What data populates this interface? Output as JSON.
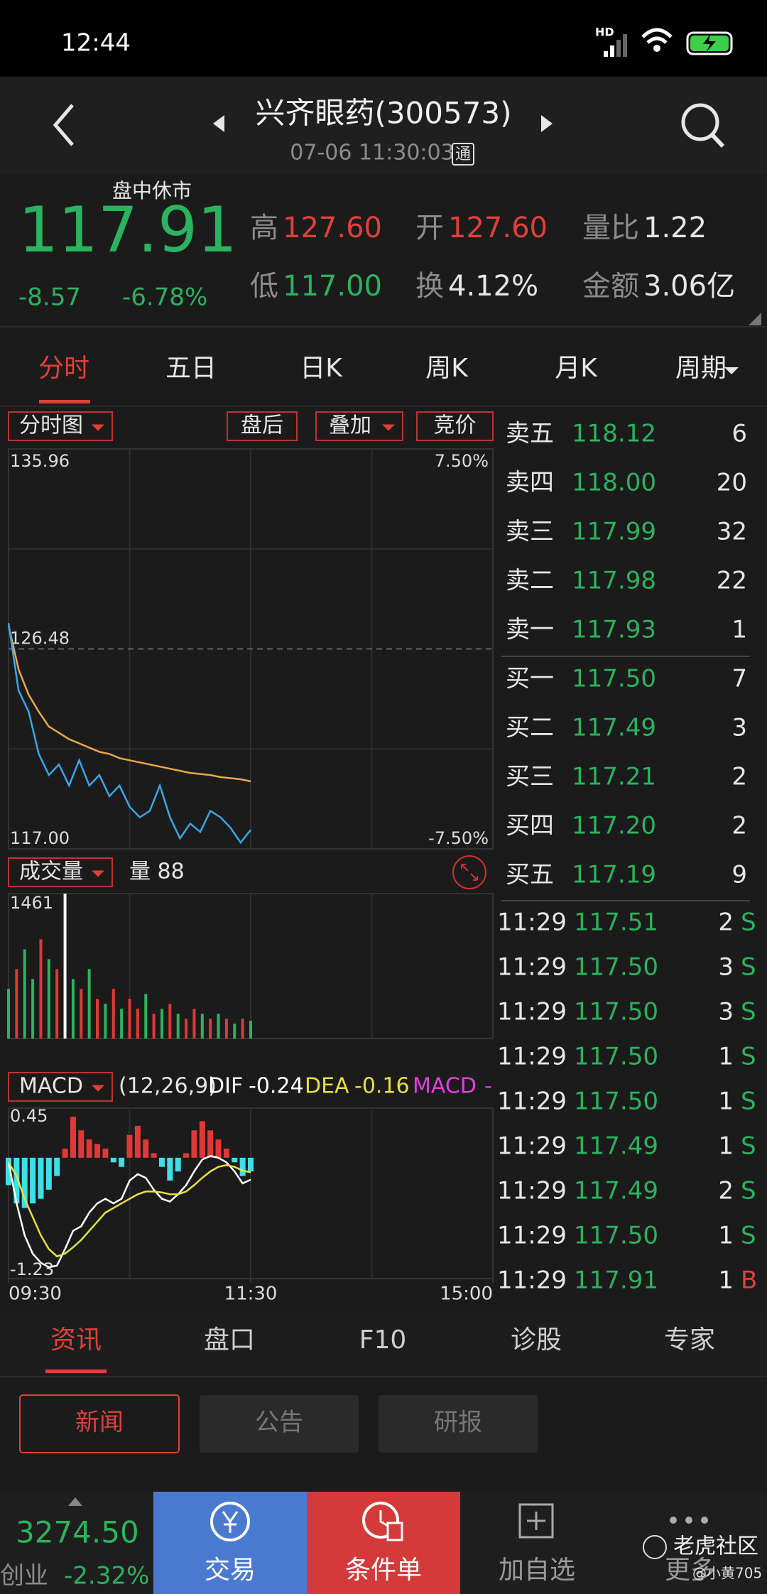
{
  "status_bar": {
    "time": "12:44",
    "network": "HD"
  },
  "header": {
    "title": "兴齐眼药(300573)",
    "datetime": "07-06 11:30:03",
    "badge": "通"
  },
  "quote": {
    "status": "盘中休市",
    "price": "117.91",
    "change": "-8.57",
    "change_pct": "-6.78%",
    "stats": [
      {
        "label": "高",
        "value": "127.60",
        "color": "#e0403a"
      },
      {
        "label": "开",
        "value": "127.60",
        "color": "#e0403a"
      },
      {
        "label": "量比",
        "value": "1.22",
        "color": "#e6e6e6"
      },
      {
        "label": "低",
        "value": "117.00",
        "color": "#2bb35e"
      },
      {
        "label": "换",
        "value": "4.12%",
        "color": "#e6e6e6"
      },
      {
        "label": "金额",
        "value": "3.06亿",
        "color": "#e6e6e6"
      }
    ]
  },
  "period_tabs": [
    "分时",
    "五日",
    "日K",
    "周K",
    "月K",
    "周期"
  ],
  "chart_toolbar": {
    "main": "分时图",
    "after_hours": "盘后",
    "overlay": "叠加",
    "auction": "竞价",
    "volume": "成交量",
    "volume_label": "量 88",
    "indicator": "MACD",
    "params": "(12,26,9)",
    "dif_value": "-0.24",
    "dea_value": "-0.16",
    "macd_value": "-"
  },
  "chart_data": [
    {
      "type": "line",
      "x": [
        0,
        5,
        10,
        15,
        20,
        25,
        30,
        35,
        40,
        45,
        50,
        55,
        60,
        65,
        70,
        75,
        80,
        85,
        90,
        95,
        100,
        105,
        110,
        115,
        120
      ],
      "xlim": [
        0,
        240
      ],
      "ylim": [
        117,
        135.96
      ],
      "yticks": [
        135.96,
        126.48,
        {
          "value": 117,
          "label": "117.00"
        }
      ],
      "y2lim": [
        -7.5,
        7.5
      ],
      "y2ticks": [
        {
          "value": 7.5,
          "label": "7.50%"
        },
        {
          "value": -7.5,
          "label": "-7.50%"
        }
      ],
      "series": [
        {
          "color": "#3aa6e8",
          "values": [
            127.7,
            124.5,
            123.5,
            121.5,
            120.5,
            121,
            120,
            121.2,
            120,
            120.5,
            119.5,
            120,
            119,
            118.5,
            118.8,
            120,
            118.5,
            117.5,
            118.2,
            117.8,
            118.8,
            118.5,
            118,
            117.3,
            117.9
          ]
        },
        {
          "color": "#e9a84a",
          "values": [
            127.6,
            125.5,
            124.3,
            123.5,
            122.8,
            122.5,
            122.2,
            122,
            121.8,
            121.6,
            121.5,
            121.3,
            121.2,
            121.1,
            121,
            120.9,
            120.8,
            120.7,
            120.6,
            120.55,
            120.5,
            120.4,
            120.35,
            120.3,
            120.2
          ]
        }
      ]
    },
    {
      "type": "bar",
      "x": [
        0,
        4,
        8,
        12,
        16,
        20,
        24,
        28,
        32,
        36,
        40,
        44,
        48,
        52,
        56,
        60,
        64,
        68,
        72,
        76,
        80,
        84,
        88,
        92,
        96,
        100,
        104,
        108,
        112,
        116,
        120
      ],
      "xlim": [
        0,
        240
      ],
      "ylim": [
        0,
        1461
      ],
      "yticks": [
        1461
      ],
      "values": [
        500,
        700,
        900,
        600,
        1000,
        800,
        700,
        1461,
        600,
        500,
        700,
        400,
        350,
        500,
        300,
        400,
        300,
        450,
        250,
        300,
        350,
        250,
        200,
        300,
        250,
        200,
        250,
        200,
        150,
        200,
        180
      ],
      "colors": [
        "#2bb35e",
        "#e03838",
        "#2bb35e",
        "#2bb35e",
        "#e03838",
        "#2bb35e",
        "#e03838",
        "#ffffff",
        "#2bb35e",
        "#e03838",
        "#2bb35e",
        "#e03838",
        "#2bb35e",
        "#e03838",
        "#2bb35e",
        "#e03838",
        "#e03838",
        "#2bb35e",
        "#e03838",
        "#2bb35e",
        "#e03838",
        "#2bb35e",
        "#e03838",
        "#e03838",
        "#2bb35e",
        "#e03838",
        "#2bb35e",
        "#e03838",
        "#2bb35e",
        "#e03838",
        "#2bb35e"
      ]
    },
    {
      "type": "macd",
      "x": [
        0,
        4,
        8,
        12,
        16,
        20,
        24,
        28,
        32,
        36,
        40,
        44,
        48,
        52,
        56,
        60,
        64,
        68,
        72,
        76,
        80,
        84,
        88,
        92,
        96,
        100,
        104,
        108,
        112,
        116,
        120
      ],
      "xlim": [
        0,
        240
      ],
      "xticks": [
        {
          "value": 0,
          "label": "09:30"
        },
        {
          "value": 120,
          "label": "11:30"
        },
        {
          "value": 240,
          "label": "15:00"
        }
      ],
      "ylim": [
        -1.23,
        0.45
      ],
      "yticks": [
        0.45,
        -1.23
      ],
      "up_color": "#e03838",
      "down_color": "#3fdfe8",
      "series": [
        {
          "name": "MACD",
          "color": "#e040e0",
          "values": [
            -0.3,
            -0.5,
            -0.55,
            -0.5,
            -0.45,
            -0.35,
            -0.2,
            0.1,
            0.45,
            0.3,
            0.2,
            0.15,
            0.1,
            -0.05,
            -0.1,
            0.25,
            0.35,
            0.2,
            0.05,
            -0.1,
            -0.25,
            -0.15,
            0.05,
            0.3,
            0.4,
            0.3,
            0.2,
            0.1,
            -0.05,
            -0.2,
            -0.15
          ]
        },
        {
          "name": "DIF",
          "color": "#ffffff",
          "values": [
            -0.05,
            -0.5,
            -0.85,
            -1.05,
            -1.15,
            -1.2,
            -1.18,
            -1.0,
            -0.8,
            -0.75,
            -0.6,
            -0.5,
            -0.45,
            -0.5,
            -0.45,
            -0.25,
            -0.18,
            -0.22,
            -0.35,
            -0.45,
            -0.48,
            -0.4,
            -0.3,
            -0.15,
            -0.02,
            0.02,
            0,
            -0.05,
            -0.15,
            -0.28,
            -0.24
          ]
        },
        {
          "name": "DEA",
          "color": "#e8e040",
          "values": [
            -0.05,
            -0.2,
            -0.45,
            -0.65,
            -0.85,
            -1.0,
            -1.08,
            -1.05,
            -0.98,
            -0.9,
            -0.8,
            -0.7,
            -0.6,
            -0.55,
            -0.5,
            -0.45,
            -0.4,
            -0.37,
            -0.37,
            -0.38,
            -0.4,
            -0.4,
            -0.37,
            -0.3,
            -0.22,
            -0.15,
            -0.1,
            -0.08,
            -0.1,
            -0.14,
            -0.16
          ]
        }
      ]
    }
  ],
  "order_book": [
    {
      "side": "卖五",
      "price": "118.12",
      "qty": "6"
    },
    {
      "side": "卖四",
      "price": "118.00",
      "qty": "20"
    },
    {
      "side": "卖三",
      "price": "117.99",
      "qty": "32"
    },
    {
      "side": "卖二",
      "price": "117.98",
      "qty": "22"
    },
    {
      "side": "卖一",
      "price": "117.93",
      "qty": "1"
    },
    {
      "side": "买一",
      "price": "117.50",
      "qty": "7"
    },
    {
      "side": "买二",
      "price": "117.49",
      "qty": "3"
    },
    {
      "side": "买三",
      "price": "117.21",
      "qty": "2"
    },
    {
      "side": "买四",
      "price": "117.20",
      "qty": "2"
    },
    {
      "side": "买五",
      "price": "117.19",
      "qty": "9"
    }
  ],
  "trades": [
    {
      "time": "11:29",
      "price": "117.51",
      "qty": "2",
      "side": "S",
      "color": "#2bb35e"
    },
    {
      "time": "11:29",
      "price": "117.50",
      "qty": "3",
      "side": "S",
      "color": "#2bb35e"
    },
    {
      "time": "11:29",
      "price": "117.50",
      "qty": "3",
      "side": "S",
      "color": "#2bb35e"
    },
    {
      "time": "11:29",
      "price": "117.50",
      "qty": "1",
      "side": "S",
      "color": "#2bb35e"
    },
    {
      "time": "11:29",
      "price": "117.50",
      "qty": "1",
      "side": "S",
      "color": "#2bb35e"
    },
    {
      "time": "11:29",
      "price": "117.49",
      "qty": "1",
      "side": "S",
      "color": "#2bb35e"
    },
    {
      "time": "11:29",
      "price": "117.49",
      "qty": "2",
      "side": "S",
      "color": "#2bb35e"
    },
    {
      "time": "11:29",
      "price": "117.50",
      "qty": "1",
      "side": "S",
      "color": "#2bb35e"
    },
    {
      "time": "11:29",
      "price": "117.91",
      "qty": "1",
      "side": "B",
      "color": "#e0403a"
    }
  ],
  "info_tabs": [
    "资讯",
    "盘口",
    "F10",
    "诊股",
    "专家"
  ],
  "news_buttons": [
    "新闻",
    "公告",
    "研报"
  ],
  "bottom_nav": {
    "index_value": "3274.50",
    "index_name": "创业",
    "index_change": "-2.32%",
    "items": [
      "交易",
      "条件单",
      "加自选",
      "更多"
    ]
  },
  "watermark": {
    "brand": "老虎社区",
    "user": "@小黄705"
  }
}
